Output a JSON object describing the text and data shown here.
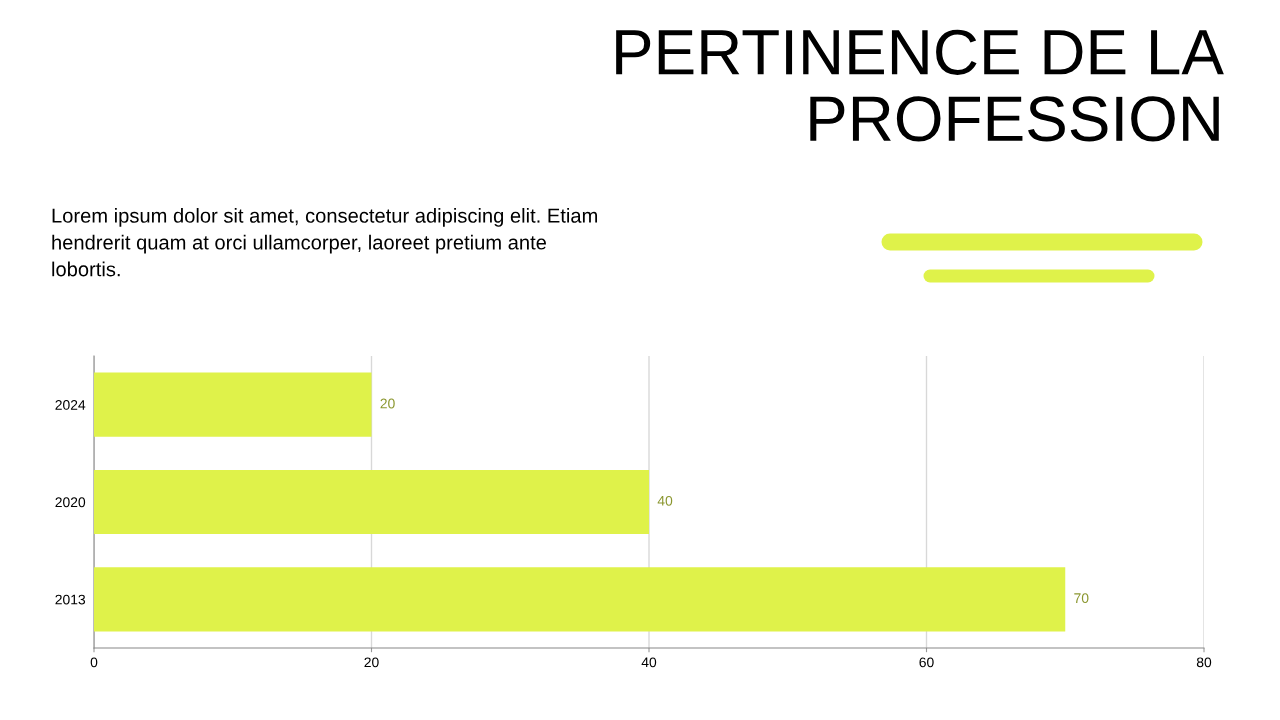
{
  "chart_data": {
    "type": "bar",
    "orientation": "horizontal",
    "title": "PERTINENCE DE LA PROFESSION",
    "subtitle": "Lorem ipsum dolor sit amet, consectetur adipiscing elit. Etiam hendrerit quam at orci ullamcorper, laoreet pretium ante lobortis.",
    "categories": [
      "2024",
      "2020",
      "2013"
    ],
    "values": [
      20,
      40,
      70
    ],
    "color": "#dff24a",
    "xlim": [
      0,
      80
    ],
    "xticks": [
      0,
      20,
      40,
      60,
      80
    ],
    "grid": "x",
    "data_labels": true
  }
}
